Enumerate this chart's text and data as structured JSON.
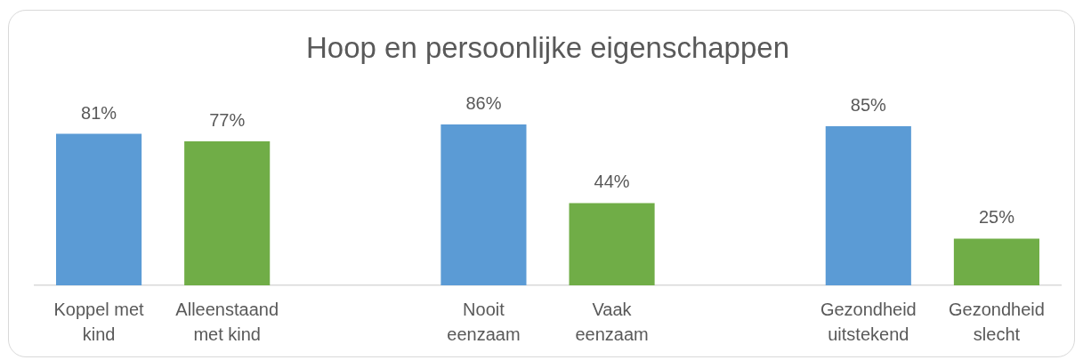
{
  "chart_data": {
    "type": "bar",
    "title": "Hoop en persoonlijke eigenschappen",
    "categories": [
      "Koppel met kind",
      "Alleenstaand met kind",
      null,
      "Nooit eenzaam",
      "Vaak eenzaam",
      null,
      "Gezondheid uitstekend",
      "Gezondheid slecht"
    ],
    "values": [
      81,
      77,
      null,
      86,
      44,
      null,
      85,
      25
    ],
    "colors": [
      "#5b9bd5",
      "#70ad47",
      null,
      "#5b9bd5",
      "#70ad47",
      null,
      "#5b9bd5",
      "#70ad47"
    ],
    "value_labels": [
      "81%",
      "77%",
      null,
      "86%",
      "44%",
      null,
      "85%",
      "25%"
    ]
  }
}
